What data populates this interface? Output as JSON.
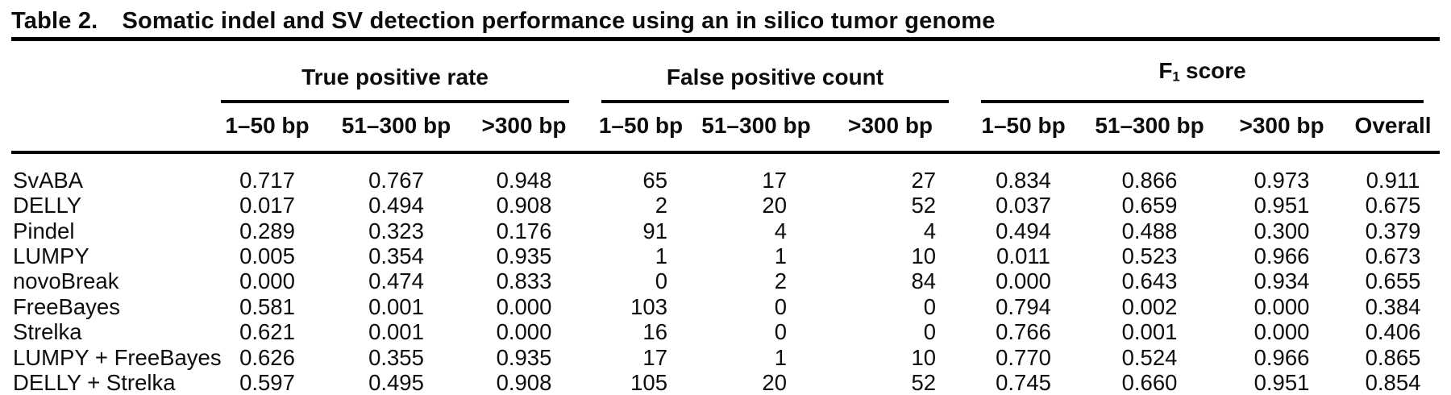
{
  "table": {
    "title_label": "Table 2.",
    "title_text": "Somatic indel and SV detection performance using an in silico tumor genome",
    "col_groups": [
      {
        "label": "True positive rate",
        "columns": [
          "1–50 bp",
          "51–300 bp",
          ">300 bp"
        ]
      },
      {
        "label": "False positive count",
        "columns": [
          "1–50 bp",
          "51–300 bp",
          ">300 bp"
        ]
      },
      {
        "label_pre": "F",
        "label_sub": "1",
        "label_post": "score",
        "columns": [
          "1–50 bp",
          "51–300 bp",
          ">300 bp",
          "Overall"
        ]
      }
    ],
    "rows": [
      {
        "tool": "SvABA",
        "tpr": [
          "0.717",
          "0.767",
          "0.948"
        ],
        "fpc": [
          "65",
          "17",
          "27"
        ],
        "f1": [
          "0.834",
          "0.866",
          "0.973"
        ],
        "overall": "0.911"
      },
      {
        "tool": "DELLY",
        "tpr": [
          "0.017",
          "0.494",
          "0.908"
        ],
        "fpc": [
          "2",
          "20",
          "52"
        ],
        "f1": [
          "0.037",
          "0.659",
          "0.951"
        ],
        "overall": "0.675"
      },
      {
        "tool": "Pindel",
        "tpr": [
          "0.289",
          "0.323",
          "0.176"
        ],
        "fpc": [
          "91",
          "4",
          "4"
        ],
        "f1": [
          "0.494",
          "0.488",
          "0.300"
        ],
        "overall": "0.379"
      },
      {
        "tool": "LUMPY",
        "tpr": [
          "0.005",
          "0.354",
          "0.935"
        ],
        "fpc": [
          "1",
          "1",
          "10"
        ],
        "f1": [
          "0.011",
          "0.523",
          "0.966"
        ],
        "overall": "0.673"
      },
      {
        "tool": "novoBreak",
        "tpr": [
          "0.000",
          "0.474",
          "0.833"
        ],
        "fpc": [
          "0",
          "2",
          "84"
        ],
        "f1": [
          "0.000",
          "0.643",
          "0.934"
        ],
        "overall": "0.655"
      },
      {
        "tool": "FreeBayes",
        "tpr": [
          "0.581",
          "0.001",
          "0.000"
        ],
        "fpc": [
          "103",
          "0",
          "0"
        ],
        "f1": [
          "0.794",
          "0.002",
          "0.000"
        ],
        "overall": "0.384"
      },
      {
        "tool": "Strelka",
        "tpr": [
          "0.621",
          "0.001",
          "0.000"
        ],
        "fpc": [
          "16",
          "0",
          "0"
        ],
        "f1": [
          "0.766",
          "0.001",
          "0.000"
        ],
        "overall": "0.406"
      },
      {
        "tool": "LUMPY + FreeBayes",
        "tpr": [
          "0.626",
          "0.355",
          "0.935"
        ],
        "fpc": [
          "17",
          "1",
          "10"
        ],
        "f1": [
          "0.770",
          "0.524",
          "0.966"
        ],
        "overall": "0.865"
      },
      {
        "tool": "DELLY + Strelka",
        "tpr": [
          "0.597",
          "0.495",
          "0.908"
        ],
        "fpc": [
          "105",
          "20",
          "52"
        ],
        "f1": [
          "0.745",
          "0.660",
          "0.951"
        ],
        "overall": "0.854"
      }
    ],
    "colors": {
      "text": "#0d0d0d",
      "rules": "#000000",
      "background": "#ffffff"
    }
  }
}
